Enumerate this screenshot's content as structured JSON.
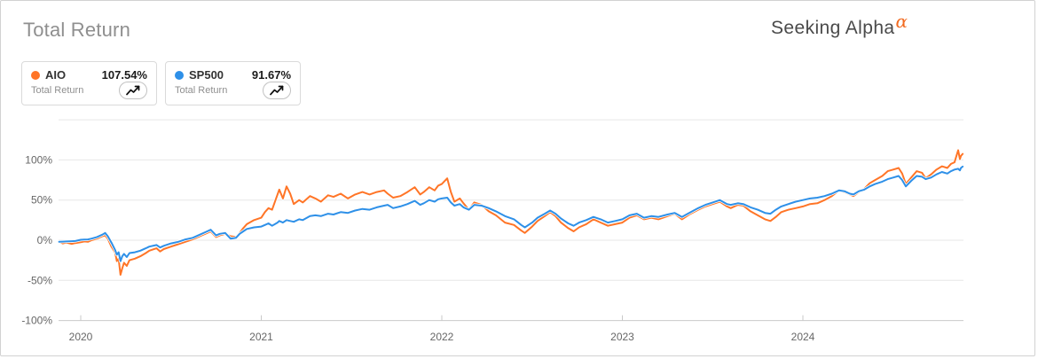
{
  "header": {
    "title": "Total Return",
    "brand": {
      "text": "Seeking Alpha",
      "alpha_symbol": "α"
    }
  },
  "legend": {
    "cards": [
      {
        "symbol": "AIO",
        "value": "107.54%",
        "metric": "Total Return",
        "color": "#ff7527"
      },
      {
        "symbol": "SP500",
        "value": "91.67%",
        "metric": "Total Return",
        "color": "#2e90e8"
      }
    ]
  },
  "chart_data": {
    "type": "line",
    "title": "Total Return",
    "xlabel": "",
    "ylabel": "",
    "x_unit": "year (fractional)",
    "xlim": [
      2019.877,
      2024.885
    ],
    "ylim": [
      -100,
      150
    ],
    "grid": true,
    "legend_position": "top-left-cards",
    "grid_levels": [
      150,
      100,
      50,
      0,
      -50
    ],
    "yticks": [
      {
        "v": 100,
        "label": "100%"
      },
      {
        "v": 50,
        "label": "50%"
      },
      {
        "v": 0,
        "label": "0%"
      },
      {
        "v": -50,
        "label": "-50%"
      },
      {
        "v": -100,
        "label": "-100%"
      }
    ],
    "xticks": [
      {
        "v": 2020,
        "label": "2020"
      },
      {
        "v": 2021,
        "label": "2021"
      },
      {
        "v": 2022,
        "label": "2022"
      },
      {
        "v": 2023,
        "label": "2023"
      },
      {
        "v": 2024,
        "label": "2024"
      }
    ],
    "x": [
      2019.88,
      2019.9,
      2019.92,
      2019.95,
      2019.97,
      2020.0,
      2020.02,
      2020.04,
      2020.06,
      2020.09,
      2020.12,
      2020.135,
      2020.15,
      2020.17,
      2020.19,
      2020.2,
      2020.21,
      2020.22,
      2020.23,
      2020.24,
      2020.255,
      2020.27,
      2020.3,
      2020.33,
      2020.36,
      2020.38,
      2020.42,
      2020.44,
      2020.46,
      2020.5,
      2020.54,
      2020.58,
      2020.62,
      2020.66,
      2020.7,
      2020.72,
      2020.75,
      2020.77,
      2020.8,
      2020.83,
      2020.86,
      2020.88,
      2020.9,
      2020.92,
      2020.96,
      2021.0,
      2021.02,
      2021.04,
      2021.06,
      2021.09,
      2021.1,
      2021.12,
      2021.14,
      2021.16,
      2021.18,
      2021.21,
      2021.23,
      2021.27,
      2021.3,
      2021.33,
      2021.37,
      2021.4,
      2021.44,
      2021.48,
      2021.52,
      2021.56,
      2021.6,
      2021.64,
      2021.68,
      2021.7,
      2021.73,
      2021.77,
      2021.81,
      2021.85,
      2021.88,
      2021.9,
      2021.93,
      2021.96,
      2021.98,
      2022.0,
      2022.03,
      2022.05,
      2022.07,
      2022.1,
      2022.12,
      2022.15,
      2022.18,
      2022.22,
      2022.26,
      2022.3,
      2022.35,
      2022.4,
      2022.44,
      2022.46,
      2022.5,
      2022.53,
      2022.57,
      2022.6,
      2022.63,
      2022.66,
      2022.7,
      2022.73,
      2022.76,
      2022.8,
      2022.84,
      2022.88,
      2022.92,
      2022.96,
      2023.0,
      2023.04,
      2023.08,
      2023.12,
      2023.16,
      2023.2,
      2023.25,
      2023.29,
      2023.33,
      2023.37,
      2023.42,
      2023.46,
      2023.5,
      2023.54,
      2023.58,
      2023.6,
      2023.64,
      2023.67,
      2023.71,
      2023.75,
      2023.79,
      2023.82,
      2023.85,
      2023.88,
      2023.92,
      2023.96,
      2024.0,
      2024.04,
      2024.08,
      2024.12,
      2024.16,
      2024.2,
      2024.23,
      2024.26,
      2024.28,
      2024.31,
      2024.34,
      2024.37,
      2024.4,
      2024.44,
      2024.47,
      2024.5,
      2024.53,
      2024.55,
      2024.57,
      2024.6,
      2024.63,
      2024.66,
      2024.68,
      2024.71,
      2024.74,
      2024.77,
      2024.8,
      2024.82,
      2024.84,
      2024.86,
      2024.87,
      2024.875,
      2024.885
    ],
    "series": [
      {
        "name": "AIO",
        "color": "#ff7527",
        "final_label": "107.54%",
        "values": [
          -2,
          -4,
          -3,
          -4.5,
          -3.5,
          -2.5,
          -1.5,
          -2,
          0,
          2,
          5,
          6,
          2,
          -8,
          -15,
          -26,
          -23,
          -43,
          -35,
          -28,
          -32,
          -25,
          -23,
          -20,
          -16,
          -13,
          -10,
          -14,
          -11,
          -8,
          -5,
          -2,
          1,
          5,
          9,
          11,
          4,
          6,
          8,
          5,
          4,
          9,
          15,
          20,
          25,
          28,
          35,
          40,
          38,
          57,
          63,
          52,
          67,
          58,
          45,
          50,
          47,
          55,
          52,
          48,
          56,
          54,
          58,
          52,
          57,
          60,
          57,
          60,
          62,
          58,
          53,
          55,
          60,
          66,
          57,
          60,
          66,
          62,
          68,
          70,
          77,
          60,
          48,
          52,
          46,
          38,
          47,
          44,
          36,
          31,
          22,
          19,
          12,
          9,
          17,
          24,
          30,
          35,
          30,
          22,
          15,
          11,
          16,
          20,
          26,
          22,
          18,
          20,
          22,
          28,
          31,
          26,
          28,
          26,
          30,
          33,
          26,
          32,
          38,
          42,
          45,
          48,
          42,
          40,
          44,
          43,
          36,
          31,
          26,
          24,
          29,
          35,
          38,
          40,
          42,
          45,
          46,
          50,
          55,
          62,
          60,
          57,
          55,
          60,
          64,
          71,
          75,
          80,
          86,
          88,
          90,
          83,
          70,
          78,
          86,
          84,
          77,
          82,
          88,
          92,
          90,
          95,
          97,
          112,
          101,
          105,
          107.54
        ]
      },
      {
        "name": "SP500",
        "color": "#2e90e8",
        "final_label": "91.67%",
        "values": [
          -2,
          -1.8,
          -1.5,
          -1.2,
          -1,
          0.5,
          0.8,
          1,
          2,
          4,
          7,
          9,
          5,
          -3,
          -12,
          -18,
          -15,
          -26,
          -20,
          -17,
          -21,
          -16,
          -15,
          -13,
          -10,
          -8,
          -6,
          -9,
          -7,
          -4,
          -2,
          1,
          3,
          7,
          11,
          13,
          6,
          8,
          9,
          2,
          3,
          8,
          11,
          14,
          16,
          17,
          19,
          21,
          18,
          22,
          24,
          22,
          25,
          24,
          23,
          26,
          25,
          30,
          31,
          30,
          33,
          32,
          35,
          34,
          37,
          39,
          38,
          41,
          43,
          44,
          40,
          42,
          45,
          49,
          44,
          46,
          50,
          48,
          51,
          52,
          53,
          47,
          43,
          45,
          41,
          38,
          44,
          43,
          40,
          36,
          30,
          26,
          19,
          16,
          22,
          28,
          33,
          37,
          33,
          27,
          21,
          18,
          22,
          25,
          29,
          26,
          22,
          24,
          26,
          31,
          33,
          28,
          30,
          29,
          32,
          34,
          29,
          34,
          40,
          44,
          47,
          50,
          45,
          44,
          46,
          45,
          41,
          38,
          34,
          33,
          38,
          42,
          45,
          48,
          50,
          52,
          53,
          55,
          58,
          62,
          61,
          58,
          57,
          61,
          63,
          67,
          70,
          73,
          76,
          78,
          80,
          75,
          67,
          74,
          80,
          79,
          76,
          78,
          82,
          85,
          83,
          86,
          88,
          89,
          87,
          90,
          91.67
        ]
      }
    ]
  }
}
